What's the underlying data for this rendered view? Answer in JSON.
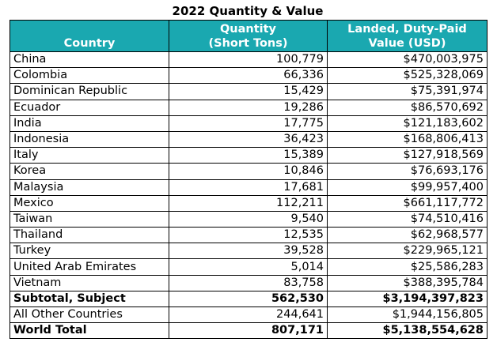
{
  "title": "2022 Quantity & Value",
  "headers": {
    "country": "Country",
    "quantity_line1": "Quantity",
    "quantity_line2": "(Short Tons)",
    "value_line1": "Landed, Duty-Paid",
    "value_line2": "Value (USD)"
  },
  "colors": {
    "header_background": "#1aa8b0",
    "header_text": "#ffffff",
    "border": "#000000"
  },
  "rows": [
    {
      "country": "China",
      "quantity": "100,779",
      "value": "$470,003,975"
    },
    {
      "country": "Colombia",
      "quantity": "66,336",
      "value": "$525,328,069"
    },
    {
      "country": "Dominican Republic",
      "quantity": "15,429",
      "value": "$75,391,974"
    },
    {
      "country": "Ecuador",
      "quantity": "19,286",
      "value": "$86,570,692"
    },
    {
      "country": "India",
      "quantity": "17,775",
      "value": "$121,183,602"
    },
    {
      "country": "Indonesia",
      "quantity": "36,423",
      "value": "$168,806,413"
    },
    {
      "country": "Italy",
      "quantity": "15,389",
      "value": "$127,918,569"
    },
    {
      "country": "Korea",
      "quantity": "10,846",
      "value": "$76,693,176"
    },
    {
      "country": "Malaysia",
      "quantity": "17,681",
      "value": "$99,957,400"
    },
    {
      "country": "Mexico",
      "quantity": "112,211",
      "value": "$661,117,772"
    },
    {
      "country": "Taiwan",
      "quantity": "9,540",
      "value": "$74,510,416"
    },
    {
      "country": "Thailand",
      "quantity": "12,535",
      "value": "$62,968,577"
    },
    {
      "country": "Turkey",
      "quantity": "39,528",
      "value": "$229,965,121"
    },
    {
      "country": "United Arab Emirates",
      "quantity": "5,014",
      "value": "$25,586,283"
    },
    {
      "country": "Vietnam",
      "quantity": "83,758",
      "value": "$388,395,784"
    }
  ],
  "subtotal": {
    "label": "Subtotal, Subject",
    "quantity": "562,530",
    "value": "$3,194,397,823"
  },
  "other": {
    "label": "All Other Countries",
    "quantity": "244,641",
    "value": "$1,944,156,805"
  },
  "total": {
    "label": "World Total",
    "quantity": "807,171",
    "value": "$5,138,554,628"
  }
}
